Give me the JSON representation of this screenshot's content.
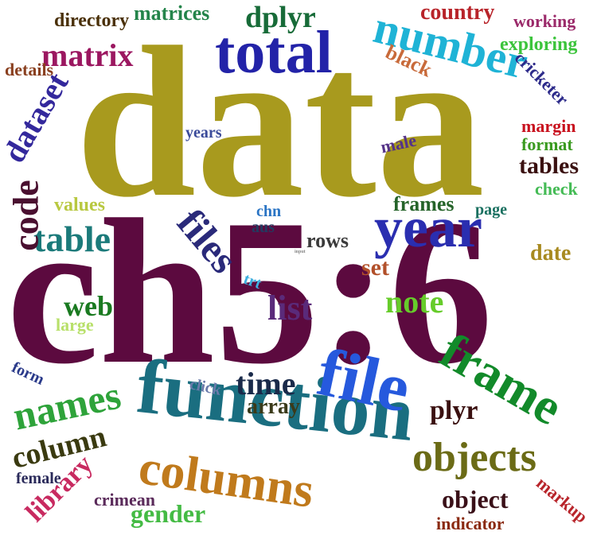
{
  "words": [
    {
      "id": "data",
      "text": "data",
      "color": "#a89a1e"
    },
    {
      "id": "ch5-6",
      "text": "ch5:6",
      "color": "#5c0a3f"
    },
    {
      "id": "function",
      "text": "function",
      "color": "#1a6e80"
    },
    {
      "id": "total",
      "text": "total",
      "color": "#2323a8"
    },
    {
      "id": "number",
      "text": "number",
      "color": "#1fb3d6"
    },
    {
      "id": "year",
      "text": "year",
      "color": "#2a2eb0"
    },
    {
      "id": "file",
      "text": "file",
      "color": "#2659dd"
    },
    {
      "id": "frame",
      "text": "frame",
      "color": "#128a2a"
    },
    {
      "id": "columns",
      "text": "columns",
      "color": "#c07a1c"
    },
    {
      "id": "objects",
      "text": "objects",
      "color": "#6b6b16"
    },
    {
      "id": "names",
      "text": "names",
      "color": "#2ea33a"
    },
    {
      "id": "files",
      "text": "files",
      "color": "#2a2a7a"
    },
    {
      "id": "table",
      "text": "table",
      "color": "#1b7a7a"
    },
    {
      "id": "code",
      "text": "code",
      "color": "#4a1030"
    },
    {
      "id": "dataset",
      "text": "dataset",
      "color": "#33289c"
    },
    {
      "id": "matrix",
      "text": "matrix",
      "color": "#9b1760"
    },
    {
      "id": "dplyr",
      "text": "dplyr",
      "color": "#176b38"
    },
    {
      "id": "matrices",
      "text": "matrices",
      "color": "#24844a"
    },
    {
      "id": "directory",
      "text": "directory",
      "color": "#4a3008"
    },
    {
      "id": "details",
      "text": "details",
      "color": "#8a4020"
    },
    {
      "id": "country",
      "text": "country",
      "color": "#b8242a"
    },
    {
      "id": "working",
      "text": "working",
      "color": "#9b2a6a"
    },
    {
      "id": "exploring",
      "text": "exploring",
      "color": "#3cc43c"
    },
    {
      "id": "black",
      "text": "black",
      "color": "#c86a3a"
    },
    {
      "id": "cricketer",
      "text": "cricketer",
      "color": "#2c2a8a"
    },
    {
      "id": "years",
      "text": "years",
      "color": "#3a4a9a"
    },
    {
      "id": "margin",
      "text": "margin",
      "color": "#c8101e"
    },
    {
      "id": "format",
      "text": "format",
      "color": "#3a9a20"
    },
    {
      "id": "male",
      "text": "male",
      "color": "#553388"
    },
    {
      "id": "tables",
      "text": "tables",
      "color": "#3a1010"
    },
    {
      "id": "check",
      "text": "check",
      "color": "#44bb55"
    },
    {
      "id": "values",
      "text": "values",
      "color": "#b8c840"
    },
    {
      "id": "frames",
      "text": "frames",
      "color": "#26642a"
    },
    {
      "id": "page",
      "text": "page",
      "color": "#1a7060"
    },
    {
      "id": "chn",
      "text": "chn",
      "color": "#2a74c4"
    },
    {
      "id": "aus",
      "text": "aus",
      "color": "#233a60"
    },
    {
      "id": "rows",
      "text": "rows",
      "color": "#3a3a3a"
    },
    {
      "id": "input",
      "text": "input",
      "color": "#888888"
    },
    {
      "id": "date",
      "text": "date",
      "color": "#a88a20"
    },
    {
      "id": "set",
      "text": "set",
      "color": "#b2502a"
    },
    {
      "id": "trt",
      "text": "trt",
      "color": "#3db0e0"
    },
    {
      "id": "note",
      "text": "note",
      "color": "#66cc2a"
    },
    {
      "id": "list",
      "text": "list",
      "color": "#5a2a7a"
    },
    {
      "id": "web",
      "text": "web",
      "color": "#1a7a20"
    },
    {
      "id": "large",
      "text": "large",
      "color": "#b8e06a"
    },
    {
      "id": "form",
      "text": "form",
      "color": "#2a3a8a"
    },
    {
      "id": "click",
      "text": "click",
      "color": "#6a7aaa"
    },
    {
      "id": "time",
      "text": "time",
      "color": "#1a2a4a"
    },
    {
      "id": "array",
      "text": "array",
      "color": "#3a3a1a"
    },
    {
      "id": "plyr",
      "text": "plyr",
      "color": "#3a1010"
    },
    {
      "id": "column",
      "text": "column",
      "color": "#3a3a10"
    },
    {
      "id": "library",
      "text": "library",
      "color": "#c82a60"
    },
    {
      "id": "female",
      "text": "female",
      "color": "#2a2a5a"
    },
    {
      "id": "crimean",
      "text": "crimean",
      "color": "#5a2a5a"
    },
    {
      "id": "gender",
      "text": "gender",
      "color": "#44bb44"
    },
    {
      "id": "object",
      "text": "object",
      "color": "#3a1018"
    },
    {
      "id": "indicator",
      "text": "indicator",
      "color": "#8a2a10"
    },
    {
      "id": "markup",
      "text": "markup",
      "color": "#b8242a"
    }
  ]
}
